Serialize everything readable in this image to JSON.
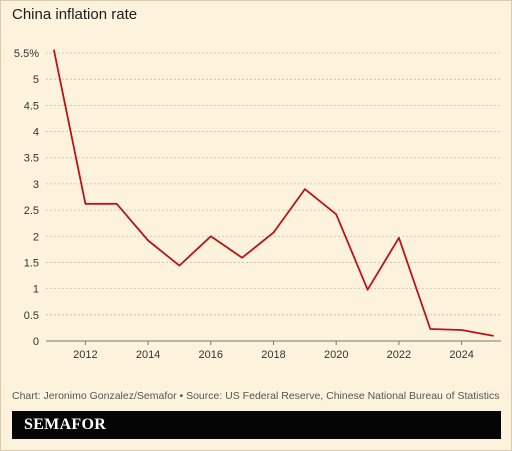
{
  "title": "China inflation rate",
  "footnote": "Chart: Jeronimo Gonzalez/Semafor • Source: US Federal Reserve, Chinese National Bureau of Statistics",
  "logo": "SEMAFOR",
  "colors": {
    "background": "#fdf3dc",
    "line": "#b8141a",
    "grid": "#c9bfa6",
    "logo_bar": "#050505"
  },
  "chart_data": {
    "type": "line",
    "title": "China inflation rate",
    "xlabel": "",
    "ylabel": "",
    "x": [
      2011,
      2012,
      2013,
      2014,
      2015,
      2016,
      2017,
      2018,
      2019,
      2020,
      2021,
      2022,
      2023,
      2024,
      2025
    ],
    "series": [
      {
        "values": [
          5.55,
          2.62,
          2.62,
          1.92,
          1.44,
          2.0,
          1.59,
          2.07,
          2.9,
          2.42,
          0.98,
          1.97,
          0.23,
          0.21,
          0.1
        ]
      }
    ],
    "ylim": [
      0,
      5.5
    ],
    "xlim": [
      2011,
      2025
    ],
    "y_ticks": [
      0,
      0.5,
      1,
      1.5,
      2,
      2.5,
      3,
      3.5,
      4,
      4.5,
      5,
      5.5
    ],
    "y_tick_labels": [
      "0",
      "0.5",
      "1",
      "1.5",
      "2",
      "2.5",
      "3",
      "3.5",
      "4",
      "4.5",
      "5",
      "5.5%"
    ],
    "x_ticks": [
      2012,
      2014,
      2016,
      2018,
      2020,
      2022,
      2024
    ],
    "x_tick_labels": [
      "2012",
      "2014",
      "2016",
      "2018",
      "2020",
      "2022",
      "2024"
    ],
    "grid": "horizontal dashed",
    "legend": "none"
  }
}
